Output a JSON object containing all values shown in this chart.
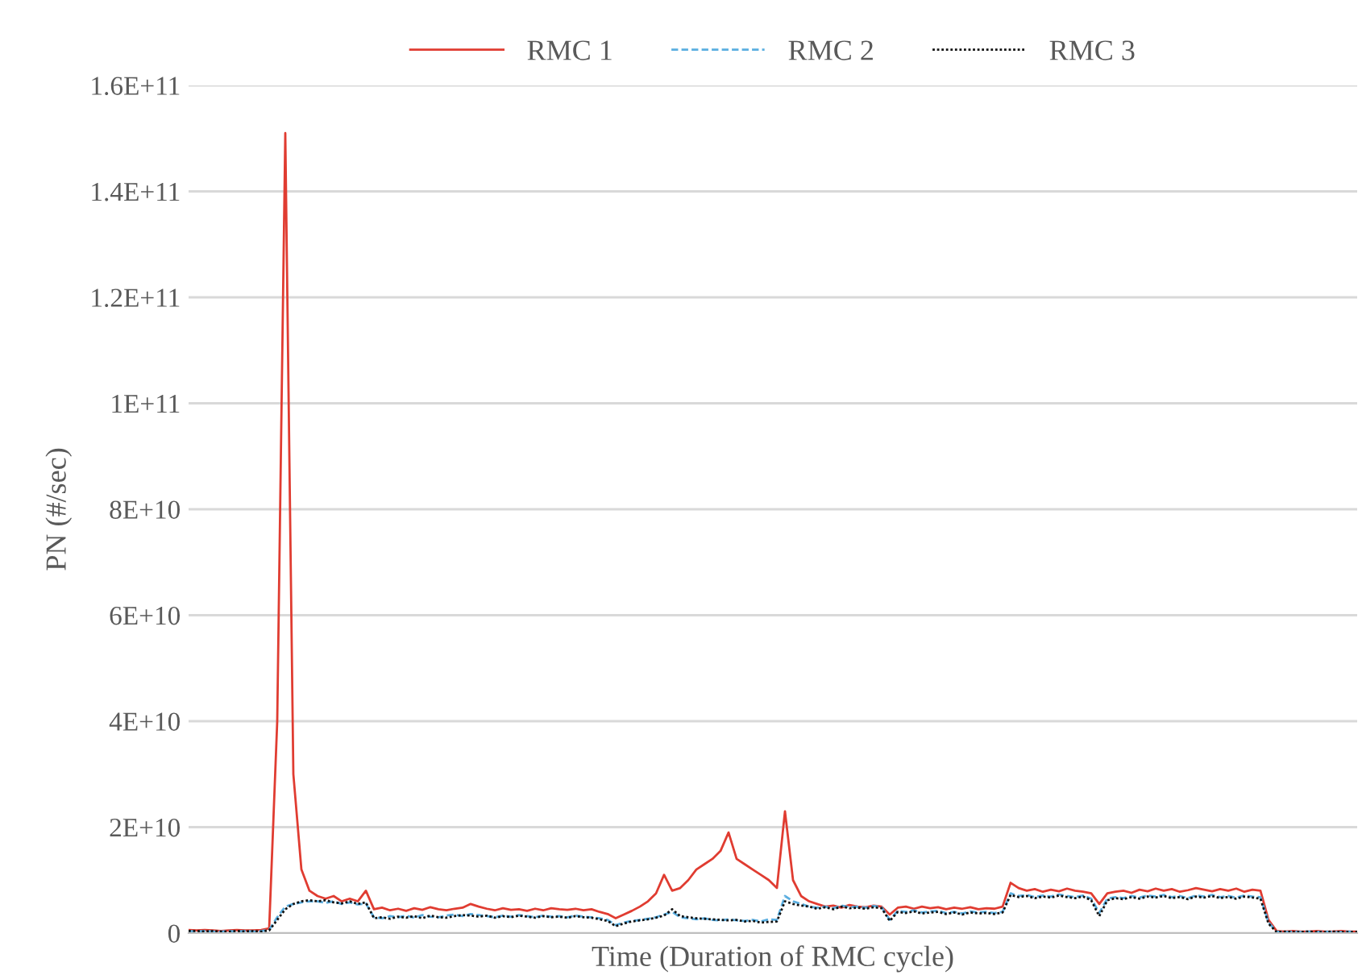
{
  "chart_data": {
    "type": "line",
    "xlabel": "Time (Duration of RMC cycle)",
    "ylabel": "PN (#/sec)",
    "categories": [
      null,
      null,
      null,
      null,
      null,
      null,
      null,
      null,
      null,
      null,
      null,
      null,
      null,
      null,
      null,
      null,
      null,
      null,
      null,
      null,
      null,
      null,
      null,
      null,
      null,
      null,
      null,
      null,
      null,
      null,
      null,
      null,
      null,
      null,
      null,
      null,
      null,
      null,
      null,
      null,
      null,
      null,
      null,
      null,
      null,
      null,
      null,
      null,
      null,
      null,
      null,
      null,
      null,
      null,
      null,
      null,
      null,
      null,
      null,
      null,
      null,
      null,
      null,
      null,
      null,
      null,
      null,
      null,
      null,
      null,
      null,
      null,
      null,
      null,
      null,
      null,
      null,
      null,
      null,
      null,
      null,
      null,
      null,
      null,
      null,
      null,
      null,
      null,
      null,
      null,
      null,
      null,
      null,
      null,
      null,
      null,
      null,
      null,
      null,
      null,
      null,
      null,
      null,
      null,
      null,
      null,
      null,
      null,
      null,
      null,
      null,
      null,
      null,
      null,
      null,
      null,
      null,
      null,
      null,
      null,
      null,
      null,
      null,
      null,
      null,
      null,
      null,
      null,
      null,
      null,
      null,
      null,
      null,
      null,
      null,
      null,
      null,
      null,
      null,
      null,
      null,
      null,
      null,
      null,
      null,
      null
    ],
    "ylim": [
      0,
      160000000000.0
    ],
    "yticks": [
      0,
      {
        "value": 20000000000.0,
        "label": "2E+10"
      },
      {
        "value": 40000000000.0,
        "label": "4E+10"
      },
      {
        "value": 60000000000.0,
        "label": "6E+10"
      },
      {
        "value": 80000000000.0,
        "label": "8E+10"
      },
      {
        "value": 100000000000.0,
        "label": "1E+11"
      },
      {
        "value": 120000000000.0,
        "label": "1.2E+11"
      },
      {
        "value": 140000000000.0,
        "label": "1.4E+11"
      },
      {
        "value": 160000000000.0,
        "label": "1.6E+11"
      }
    ],
    "grid": "y",
    "legend": "top",
    "marker": "none",
    "series": [
      {
        "name": "RMC 1",
        "color": "#e03c31",
        "line_style": "solid",
        "values": [
          600000000.0,
          500000000.0,
          600000000.0,
          500000000.0,
          400000000.0,
          500000000.0,
          600000000.0,
          500000000.0,
          500000000.0,
          600000000.0,
          900000000.0,
          40000000000.0,
          151000000000.0,
          30000000000.0,
          12000000000.0,
          8000000000.0,
          7000000000.0,
          6500000000.0,
          7000000000.0,
          6000000000.0,
          6500000000.0,
          6000000000.0,
          8000000000.0,
          4500000000.0,
          4800000000.0,
          4300000000.0,
          4600000000.0,
          4200000000.0,
          4700000000.0,
          4400000000.0,
          4900000000.0,
          4500000000.0,
          4300000000.0,
          4600000000.0,
          4800000000.0,
          5500000000.0,
          5000000000.0,
          4600000000.0,
          4300000000.0,
          4700000000.0,
          4400000000.0,
          4500000000.0,
          4200000000.0,
          4600000000.0,
          4300000000.0,
          4700000000.0,
          4500000000.0,
          4400000000.0,
          4600000000.0,
          4300000000.0,
          4500000000.0,
          4000000000.0,
          3600000000.0,
          2800000000.0,
          3500000000.0,
          4200000000.0,
          5000000000.0,
          6000000000.0,
          7500000000.0,
          11000000000.0,
          8000000000.0,
          8500000000.0,
          10000000000.0,
          12000000000.0,
          13000000000.0,
          14000000000.0,
          15500000000.0,
          19000000000.0,
          14000000000.0,
          13000000000.0,
          12000000000.0,
          11000000000.0,
          10000000000.0,
          8500000000.0,
          23000000000.0,
          10000000000.0,
          7000000000.0,
          6000000000.0,
          5500000000.0,
          5000000000.0,
          5200000000.0,
          4800000000.0,
          5300000000.0,
          5000000000.0,
          4900000000.0,
          5200000000.0,
          5000000000.0,
          3500000000.0,
          4800000000.0,
          5000000000.0,
          4600000000.0,
          5000000000.0,
          4700000000.0,
          4900000000.0,
          4500000000.0,
          4800000000.0,
          4600000000.0,
          4900000000.0,
          4500000000.0,
          4700000000.0,
          4600000000.0,
          5000000000.0,
          9500000000.0,
          8500000000.0,
          8000000000.0,
          8300000000.0,
          7800000000.0,
          8200000000.0,
          7900000000.0,
          8400000000.0,
          8000000000.0,
          7800000000.0,
          7500000000.0,
          5500000000.0,
          7500000000.0,
          7800000000.0,
          8000000000.0,
          7600000000.0,
          8200000000.0,
          7900000000.0,
          8400000000.0,
          8000000000.0,
          8300000000.0,
          7800000000.0,
          8100000000.0,
          8500000000.0,
          8200000000.0,
          7900000000.0,
          8300000000.0,
          8000000000.0,
          8400000000.0,
          7800000000.0,
          8200000000.0,
          8000000000.0,
          2500000000.0,
          400000000.0,
          300000000.0,
          400000000.0,
          300000000.0,
          300000000.0,
          400000000.0,
          300000000.0,
          300000000.0,
          400000000.0,
          300000000.0,
          300000000.0
        ]
      },
      {
        "name": "RMC 2",
        "color": "#5aaee0",
        "line_style": "dashed",
        "values": [
          400000000.0,
          300000000.0,
          400000000.0,
          300000000.0,
          300000000.0,
          400000000.0,
          300000000.0,
          400000000.0,
          300000000.0,
          400000000.0,
          600000000.0,
          3000000000.0,
          5000000000.0,
          5500000000.0,
          5800000000.0,
          6000000000.0,
          6000000000.0,
          5700000000.0,
          6000000000.0,
          5500000000.0,
          5800000000.0,
          5400000000.0,
          5600000000.0,
          3000000000.0,
          2800000000.0,
          3200000000.0,
          3000000000.0,
          3300000000.0,
          2900000000.0,
          3400000000.0,
          3100000000.0,
          3000000000.0,
          3300000000.0,
          3500000000.0,
          3200000000.0,
          3600000000.0,
          3400000000.0,
          3200000000.0,
          3000000000.0,
          3300000000.0,
          3100000000.0,
          3400000000.0,
          3200000000.0,
          3000000000.0,
          3300000000.0,
          3100000000.0,
          3200000000.0,
          3000000000.0,
          3300000000.0,
          3100000000.0,
          3000000000.0,
          2800000000.0,
          2500000000.0,
          1500000000.0,
          2000000000.0,
          2300000000.0,
          2500000000.0,
          2700000000.0,
          3000000000.0,
          3500000000.0,
          4000000000.0,
          3000000000.0,
          2800000000.0,
          2600000000.0,
          2800000000.0,
          2500000000.0,
          2400000000.0,
          2600000000.0,
          2400000000.0,
          2300000000.0,
          2500000000.0,
          2200000000.0,
          2600000000.0,
          2500000000.0,
          7000000000.0,
          6000000000.0,
          5500000000.0,
          5000000000.0,
          4800000000.0,
          5000000000.0,
          4700000000.0,
          5200000000.0,
          4900000000.0,
          5000000000.0,
          4800000000.0,
          5100000000.0,
          4900000000.0,
          2500000000.0,
          4200000000.0,
          4000000000.0,
          4300000000.0,
          3900000000.0,
          4100000000.0,
          4200000000.0,
          3800000000.0,
          4000000000.0,
          3700000000.0,
          4100000000.0,
          3900000000.0,
          4000000000.0,
          3800000000.0,
          4000000000.0,
          7500000000.0,
          7000000000.0,
          7200000000.0,
          6800000000.0,
          7100000000.0,
          6900000000.0,
          7300000000.0,
          7000000000.0,
          6800000000.0,
          7100000000.0,
          6500000000.0,
          3800000000.0,
          6500000000.0,
          6800000000.0,
          6600000000.0,
          7000000000.0,
          6700000000.0,
          7100000000.0,
          6900000000.0,
          7200000000.0,
          6800000000.0,
          7000000000.0,
          6600000000.0,
          7100000000.0,
          6900000000.0,
          7200000000.0,
          6800000000.0,
          7000000000.0,
          6700000000.0,
          7100000000.0,
          6900000000.0,
          6800000000.0,
          2000000000.0,
          300000000.0,
          200000000.0,
          300000000.0,
          200000000.0,
          300000000.0,
          200000000.0,
          300000000.0,
          200000000.0,
          200000000.0,
          300000000.0,
          200000000.0
        ]
      },
      {
        "name": "RMC 3",
        "color": "#111111",
        "line_style": "dotted",
        "values": [
          400000000.0,
          400000000.0,
          300000000.0,
          400000000.0,
          300000000.0,
          300000000.0,
          400000000.0,
          300000000.0,
          400000000.0,
          300000000.0,
          500000000.0,
          2500000000.0,
          4500000000.0,
          5500000000.0,
          6000000000.0,
          6200000000.0,
          6000000000.0,
          6200000000.0,
          5800000000.0,
          5600000000.0,
          6000000000.0,
          5500000000.0,
          5800000000.0,
          2800000000.0,
          3000000000.0,
          2700000000.0,
          3100000000.0,
          2900000000.0,
          3200000000.0,
          2800000000.0,
          3300000000.0,
          3000000000.0,
          2900000000.0,
          3200000000.0,
          3400000000.0,
          3300000000.0,
          3100000000.0,
          3300000000.0,
          2900000000.0,
          3200000000.0,
          3000000000.0,
          3300000000.0,
          3100000000.0,
          2900000000.0,
          3200000000.0,
          3000000000.0,
          3100000000.0,
          2900000000.0,
          3200000000.0,
          3000000000.0,
          2900000000.0,
          2600000000.0,
          2300000000.0,
          1300000000.0,
          1800000000.0,
          2200000000.0,
          2400000000.0,
          2600000000.0,
          2900000000.0,
          3300000000.0,
          4500000000.0,
          3200000000.0,
          3000000000.0,
          2800000000.0,
          2700000000.0,
          2600000000.0,
          2500000000.0,
          2400000000.0,
          2500000000.0,
          2200000000.0,
          2300000000.0,
          2000000000.0,
          2100000000.0,
          2200000000.0,
          6000000000.0,
          5500000000.0,
          5200000000.0,
          5000000000.0,
          4600000000.0,
          4900000000.0,
          4500000000.0,
          5000000000.0,
          4700000000.0,
          4800000000.0,
          4600000000.0,
          4900000000.0,
          4700000000.0,
          2300000000.0,
          4000000000.0,
          3800000000.0,
          4100000000.0,
          3700000000.0,
          3900000000.0,
          4000000000.0,
          3600000000.0,
          3900000000.0,
          3500000000.0,
          3900000000.0,
          3700000000.0,
          3800000000.0,
          3600000000.0,
          3900000000.0,
          7200000000.0,
          6800000000.0,
          7000000000.0,
          6600000000.0,
          6900000000.0,
          6700000000.0,
          7100000000.0,
          6800000000.0,
          6600000000.0,
          6900000000.0,
          6200000000.0,
          3200000000.0,
          6200000000.0,
          6600000000.0,
          6400000000.0,
          6800000000.0,
          6500000000.0,
          6900000000.0,
          6700000000.0,
          7000000000.0,
          6600000000.0,
          6800000000.0,
          6400000000.0,
          6900000000.0,
          6700000000.0,
          7000000000.0,
          6600000000.0,
          6800000000.0,
          6500000000.0,
          6900000000.0,
          6700000000.0,
          6500000000.0,
          1800000000.0,
          200000000.0,
          300000000.0,
          200000000.0,
          200000000.0,
          300000000.0,
          200000000.0,
          200000000.0,
          300000000.0,
          200000000.0,
          200000000.0,
          200000000.0
        ]
      }
    ]
  }
}
